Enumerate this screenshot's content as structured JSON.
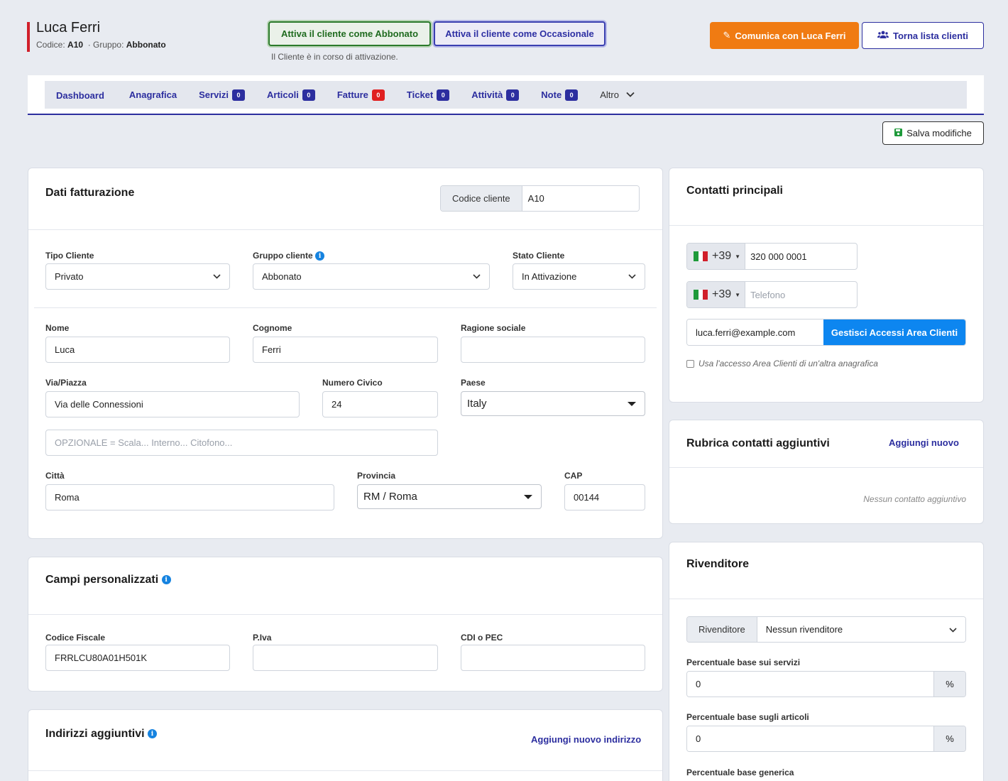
{
  "header": {
    "client_name": "Luca Ferri",
    "code_label": "Codice:",
    "code_value": "A10",
    "group_label": "· Gruppo:",
    "group_value": "Abbonato",
    "activate_subscriber": "Attiva il cliente come Abbonato",
    "activate_occasional": "Attiva il cliente come Occasionale",
    "activation_note": "Il Cliente è in corso di attivazione.",
    "communicate": "Comunica con Luca Ferri",
    "back_to_list": "Torna lista clienti"
  },
  "tabs": [
    {
      "label": "Dashboard"
    },
    {
      "label": "Anagrafica"
    },
    {
      "label": "Servizi",
      "badge": "0"
    },
    {
      "label": "Articoli",
      "badge": "0"
    },
    {
      "label": "Fatture",
      "badge": "0",
      "badge_color": "#e02020"
    },
    {
      "label": "Ticket",
      "badge": "0"
    },
    {
      "label": "Attività",
      "badge": "0"
    },
    {
      "label": "Note",
      "badge": "0"
    },
    {
      "label": "Altro"
    }
  ],
  "save_label": "Salva modifiche",
  "billing": {
    "title": "Dati fatturazione",
    "client_code_label": "Codice cliente",
    "client_code_value": "A10",
    "tipo_label": "Tipo Cliente",
    "tipo_value": "Privato",
    "gruppo_label": "Gruppo cliente",
    "gruppo_value": "Abbonato",
    "stato_label": "Stato Cliente",
    "stato_value": "In Attivazione",
    "nome_label": "Nome",
    "nome_value": "Luca",
    "cognome_label": "Cognome",
    "cognome_value": "Ferri",
    "ragione_label": "Ragione sociale",
    "ragione_value": "",
    "via_label": "Via/Piazza",
    "via_value": "Via delle Connessioni",
    "civico_label": "Numero Civico",
    "civico_value": "24",
    "paese_label": "Paese",
    "paese_value": "Italy",
    "optional_placeholder": "OPZIONALE = Scala... Interno... Citofono...",
    "citta_label": "Città",
    "citta_value": "Roma",
    "provincia_label": "Provincia",
    "provincia_value": "RM / Roma",
    "cap_label": "CAP",
    "cap_value": "00144"
  },
  "custom": {
    "title": "Campi personalizzati",
    "cf_label": "Codice Fiscale",
    "cf_value": "FRRLCU80A01H501K",
    "piva_label": "P.Iva",
    "piva_value": "",
    "cdi_label": "CDI o PEC",
    "cdi_value": ""
  },
  "addresses": {
    "title": "Indirizzi aggiuntivi",
    "add_link": "Aggiungi nuovo indirizzo"
  },
  "contacts": {
    "title": "Contatti principali",
    "prefix": "+39",
    "phone_value": "320 000 0001",
    "phone2_placeholder": "Telefono",
    "email_value": "luca.ferri@example.com",
    "manage_access": "Gestisci Accessi Area Clienti",
    "use_other_access": "Usa l'accesso Area Clienti di un'altra anagrafica"
  },
  "rubrica": {
    "title": "Rubrica contatti aggiuntivi",
    "add_link": "Aggiungi nuovo",
    "empty_text": "Nessun contatto aggiuntivo"
  },
  "reseller": {
    "title": "Rivenditore",
    "addon_label": "Rivenditore",
    "select_value": "Nessun rivenditore",
    "pct_services_label": "Percentuale base sui servizi",
    "pct_services_value": "0",
    "pct_articles_label": "Percentuale base sugli articoli",
    "pct_articles_value": "0",
    "pct_generic_label": "Percentuale base generica",
    "pct_symbol": "%"
  }
}
